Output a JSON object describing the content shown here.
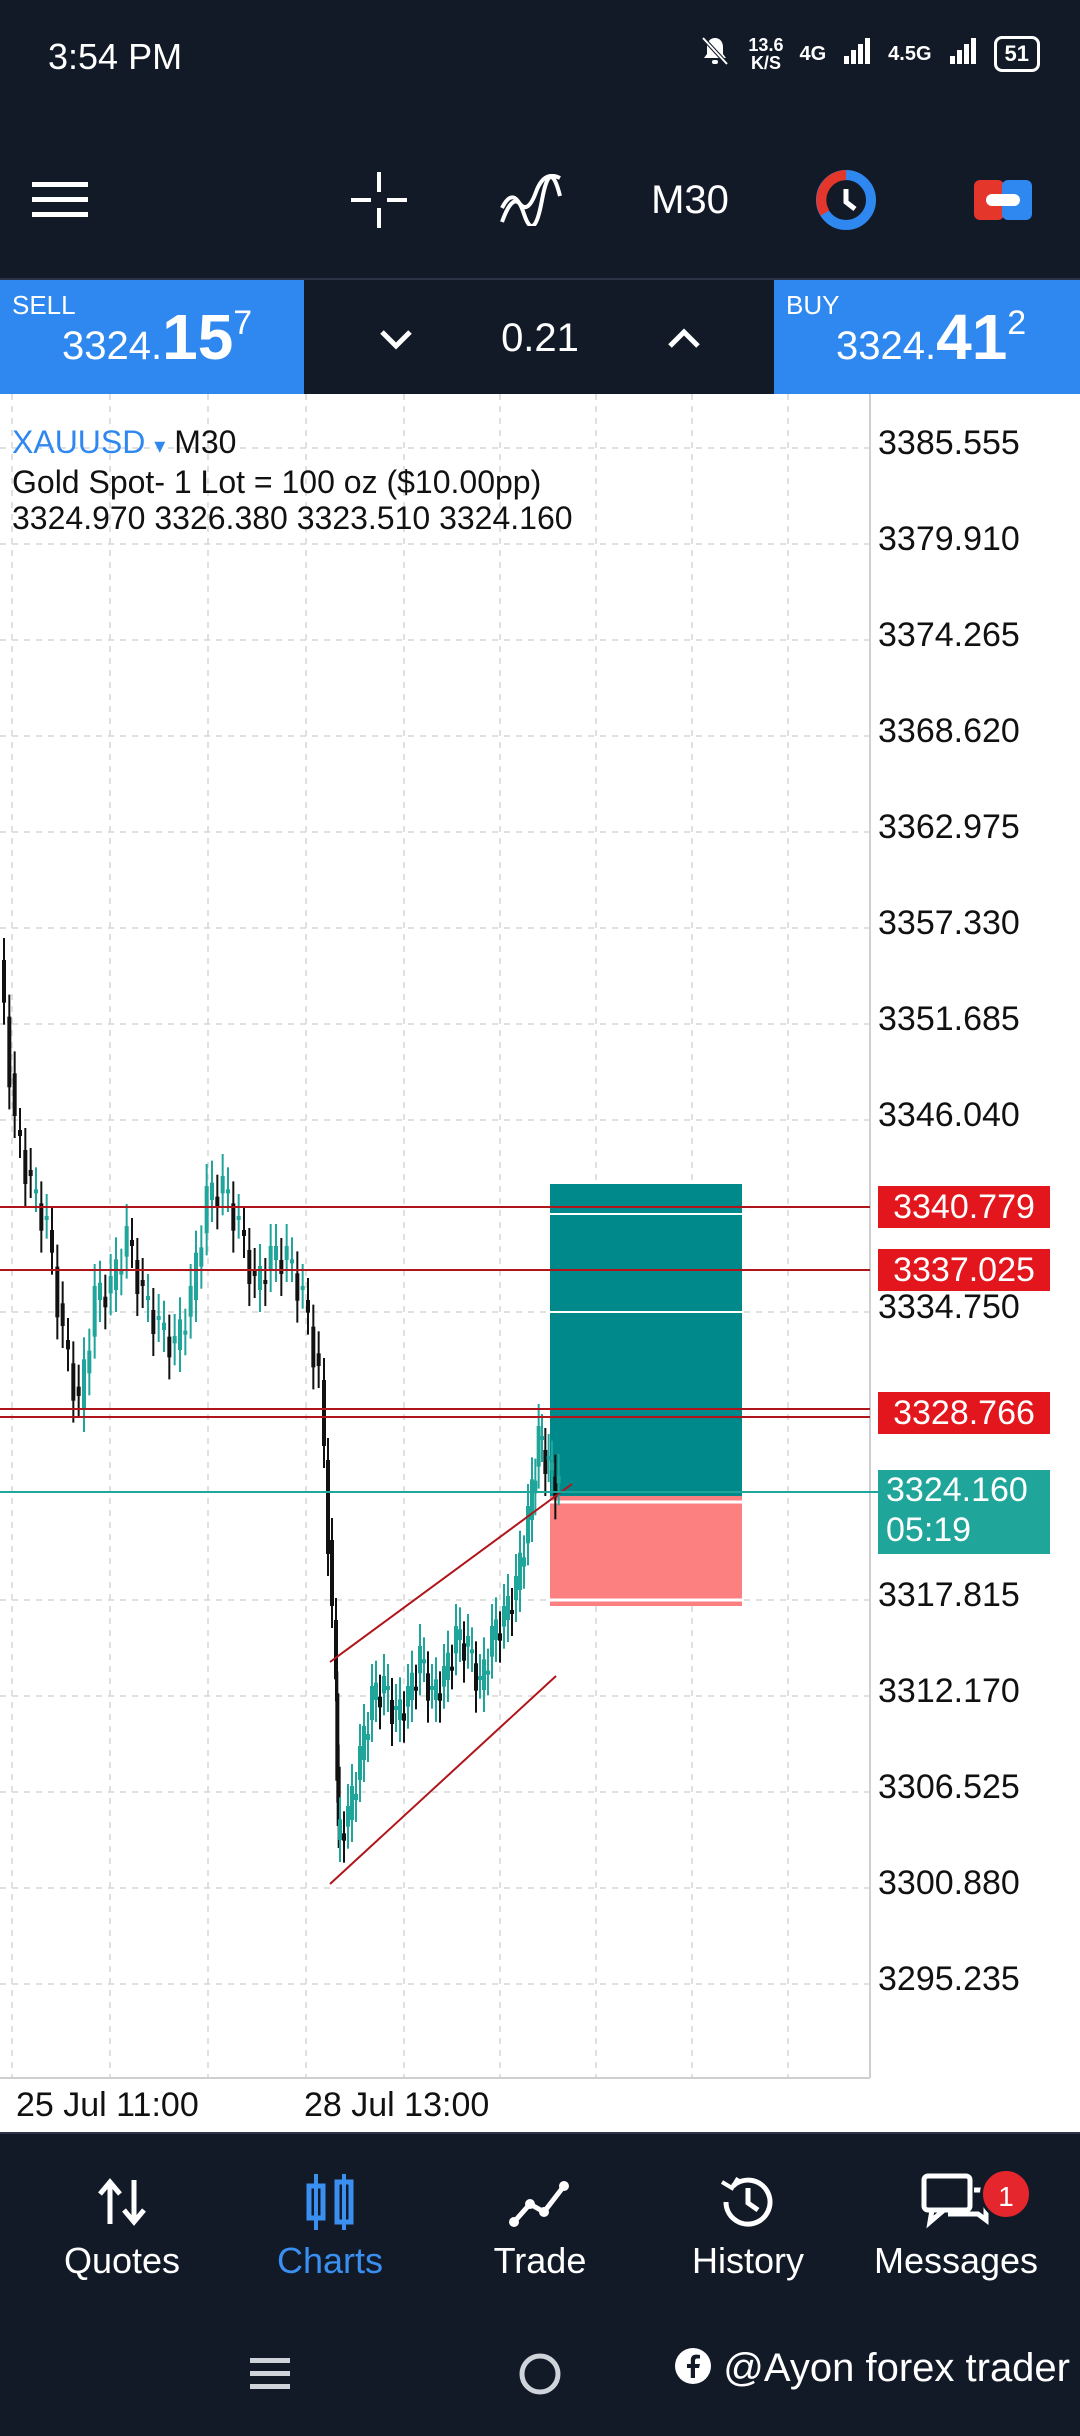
{
  "status_bar": {
    "time": "3:54 PM",
    "speed_value": "13.6",
    "speed_unit": "K/S",
    "network_1": "4G",
    "network_2": "4.5G",
    "battery": "51"
  },
  "toolbar": {
    "timeframe": "M30",
    "icons": [
      "menu-icon",
      "crosshair-icon",
      "indicators-icon",
      "chart-color-icon",
      "toggle-icon"
    ]
  },
  "trade_bar": {
    "sell_label": "SELL",
    "sell_price_prefix": "3324.",
    "sell_price_big": "15",
    "sell_price_sup": "7",
    "lot": "0.21",
    "buy_label": "BUY",
    "buy_price_prefix": "3324.",
    "buy_price_big": "41",
    "buy_price_sup": "2"
  },
  "chart": {
    "symbol": "XAUUSD",
    "symbol_arrow": "▾",
    "timeframe": "M30",
    "description": "Gold Spot- 1 Lot = 100 oz ($10.00pp)",
    "ohlc": "3324.970 3326.380 3323.510 3324.160",
    "price_scale": [
      "3385.555",
      "3379.910",
      "3374.265",
      "3368.620",
      "3362.975",
      "3357.330",
      "3351.685",
      "3346.040",
      "3334.750",
      "3317.815",
      "3312.170",
      "3306.525",
      "3300.880",
      "3295.235"
    ],
    "level_tags": [
      "3340.779",
      "3337.025",
      "3328.766"
    ],
    "current_price": "3324.160",
    "countdown": "05:19",
    "time_labels": [
      "25 Jul 11:00",
      "28 Jul 13:00"
    ],
    "colors": {
      "up": "#1fa59a",
      "down": "#111111",
      "level_line": "#b0151b",
      "take_profit_zone": "#00898b",
      "stop_loss_zone": "#fd8080",
      "current_line": "#1fa59a"
    }
  },
  "bottom_nav": {
    "items": [
      {
        "label": "Quotes",
        "icon": "quotes-icon"
      },
      {
        "label": "Charts",
        "icon": "charts-icon"
      },
      {
        "label": "Trade",
        "icon": "trade-icon"
      },
      {
        "label": "History",
        "icon": "history-icon"
      },
      {
        "label": "Messages",
        "icon": "messages-icon"
      }
    ],
    "messages_badge": "1"
  },
  "system_nav": {
    "watermark": "@Ayon forex trader"
  }
}
